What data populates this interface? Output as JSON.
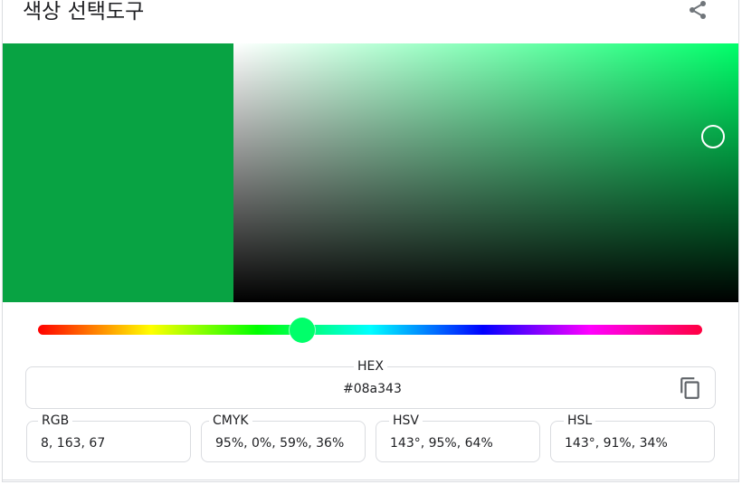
{
  "header": {
    "title": "색상 선택도구",
    "share_icon": "share-icon"
  },
  "picker": {
    "selected_color": "#08a343",
    "hue_color": "#00ff6a",
    "hue_degrees": 143,
    "saturation_pct": 95,
    "value_pct": 64
  },
  "hex": {
    "label": "HEX",
    "value": "#08a343",
    "copy_icon": "copy-icon"
  },
  "formats": [
    {
      "label": "RGB",
      "value": "8, 163, 67"
    },
    {
      "label": "CMYK",
      "value": "95%, 0%, 59%, 36%"
    },
    {
      "label": "HSV",
      "value": "143°, 95%, 64%"
    },
    {
      "label": "HSL",
      "value": "143°, 91%, 34%"
    }
  ]
}
